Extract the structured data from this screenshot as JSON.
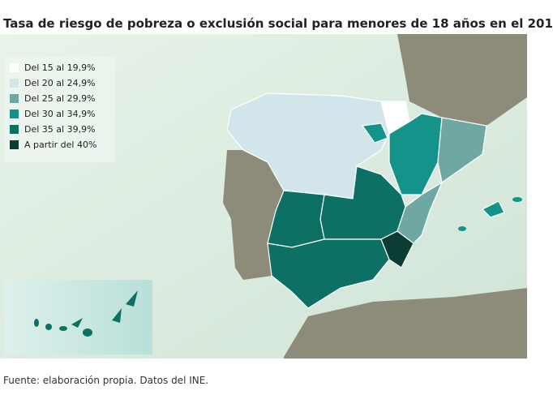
{
  "title": "Tasa de riesgo de pobreza o exclusión social para menores de 18 años en el 201",
  "legend": [
    {
      "label": "Del 15 al 19,9%",
      "color": "#ffffff"
    },
    {
      "label": "Del 20 al 24,9%",
      "color": "#d2e5ea"
    },
    {
      "label": "Del 25 al 29,9%",
      "color": "#6fa7a3"
    },
    {
      "label": "Del 30 al 34,9%",
      "color": "#14938a"
    },
    {
      "label": "Del 35 al 39,9%",
      "color": "#0d7064"
    },
    {
      "label": "A partir del 40%",
      "color": "#0b3d34"
    }
  ],
  "source": "Fuente: elaboración propia. Datos del INE."
}
